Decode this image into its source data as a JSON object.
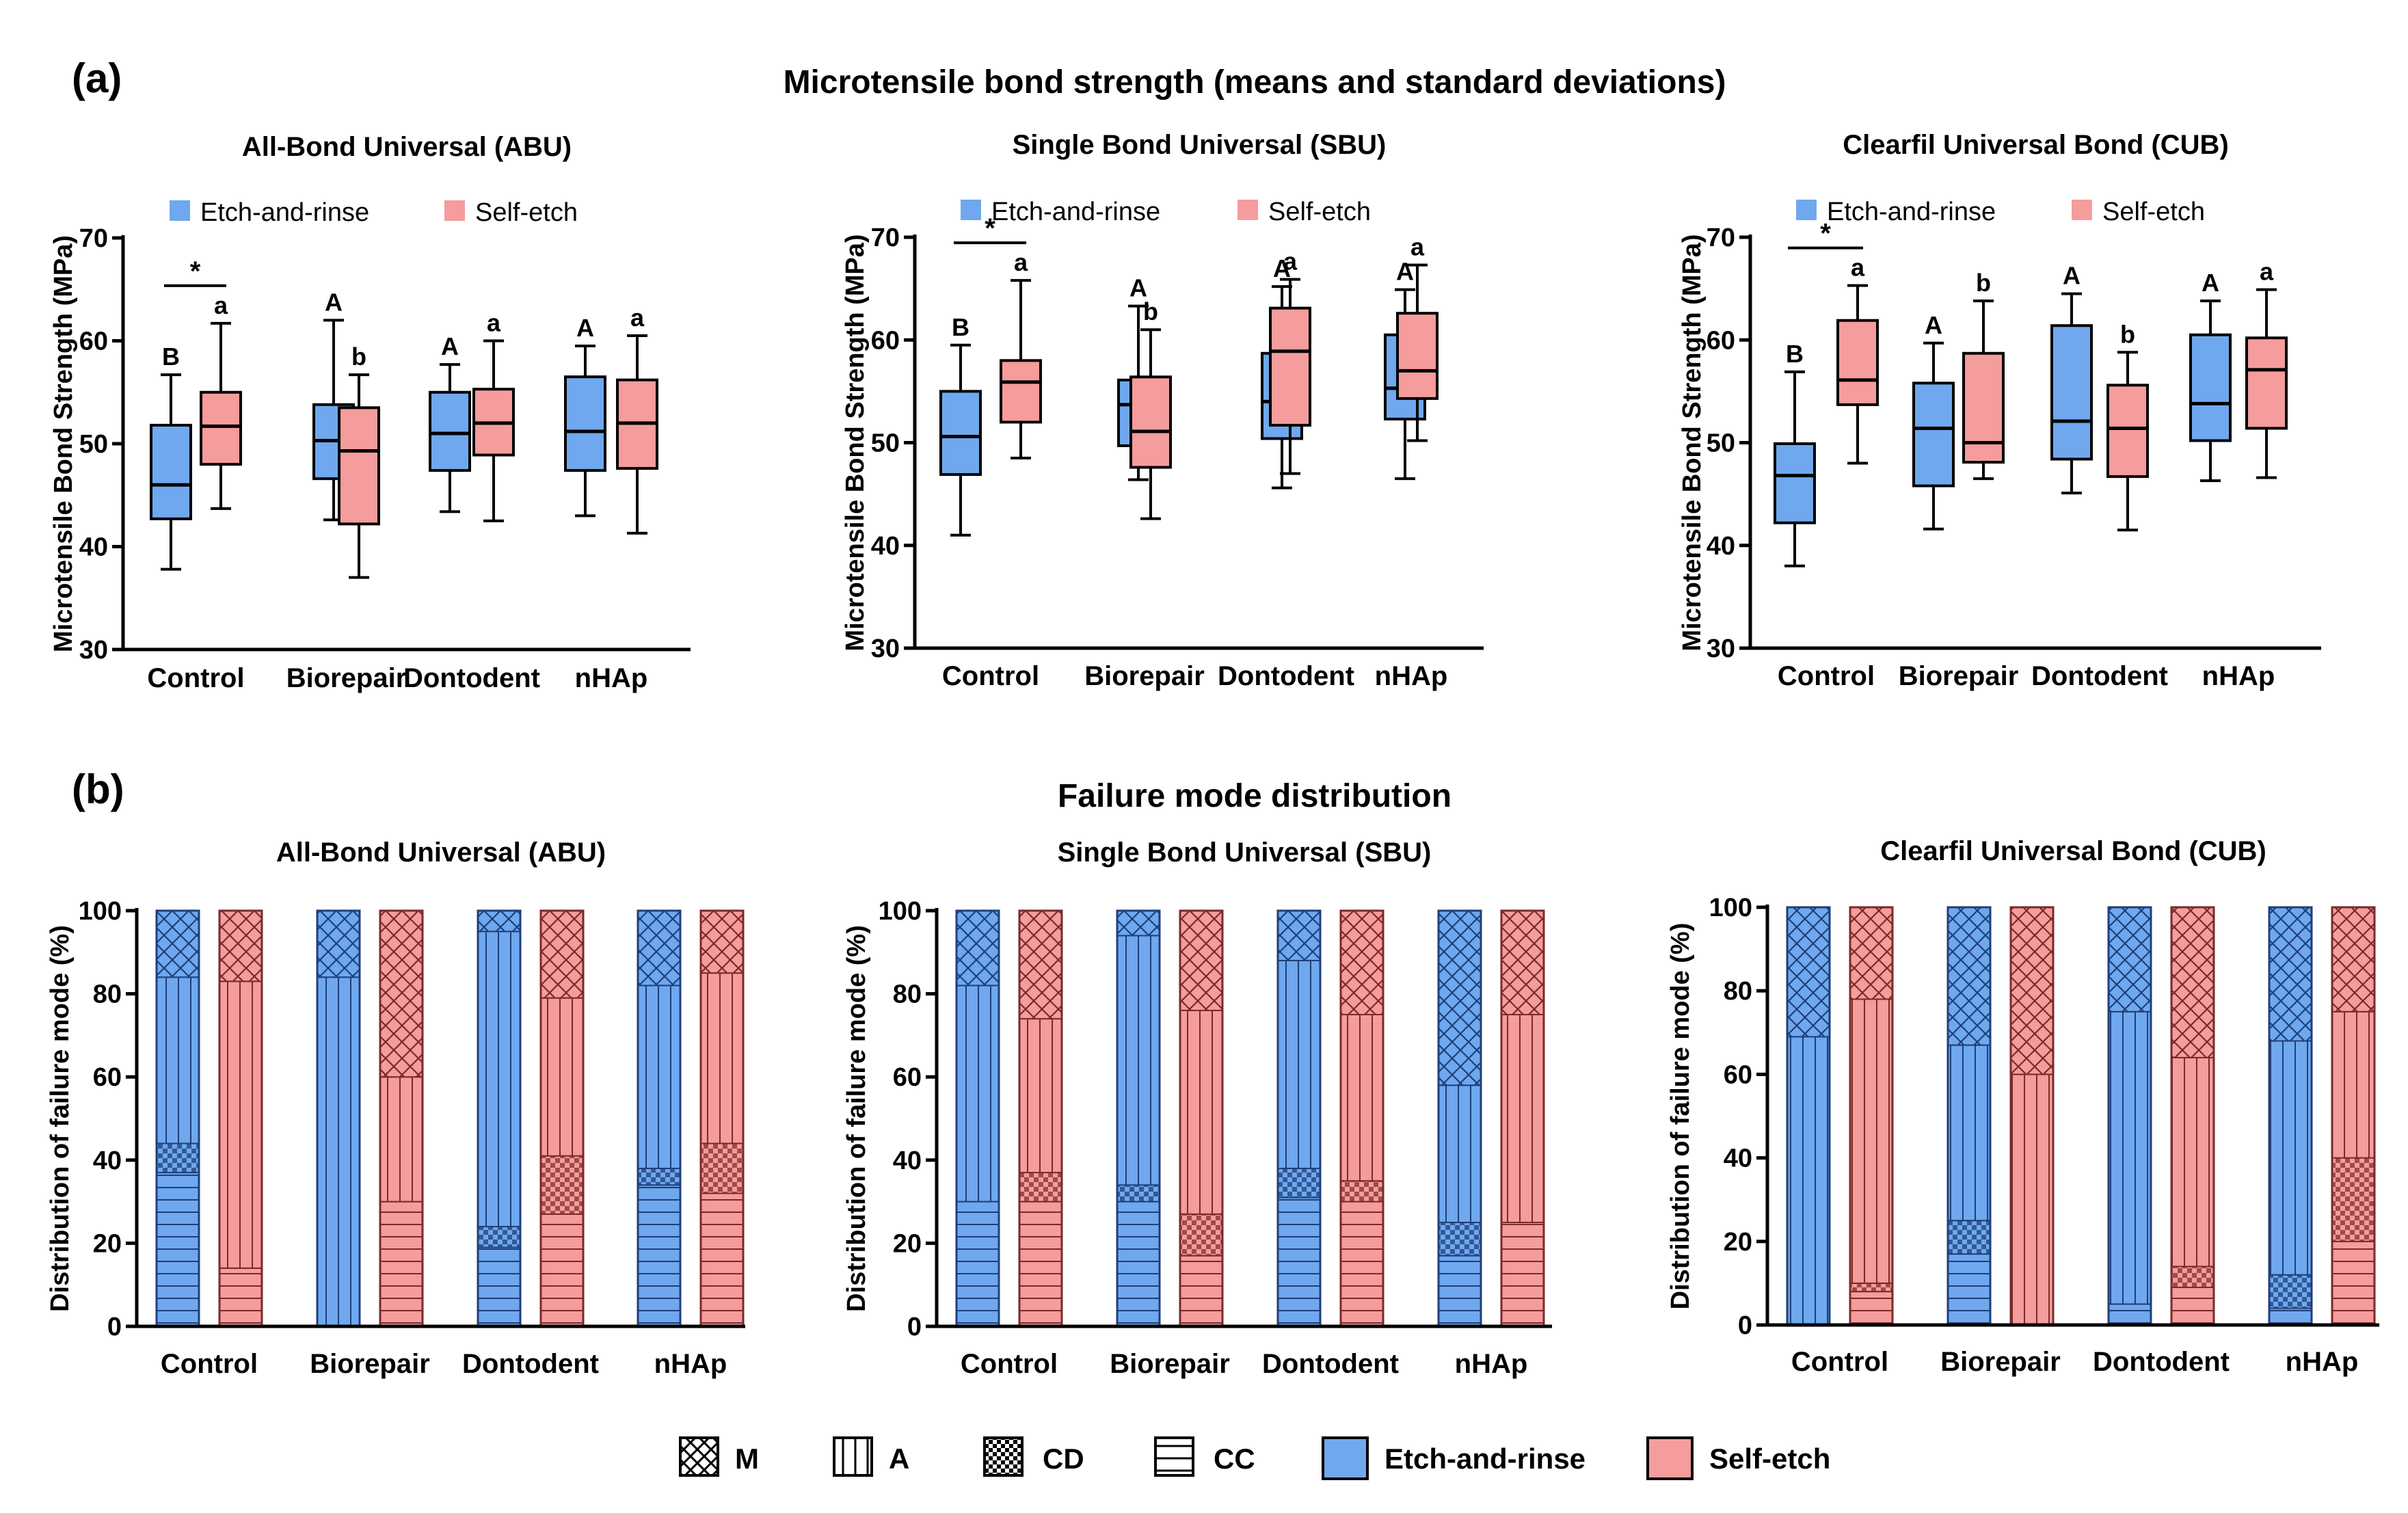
{
  "panel_labels": {
    "a": "(a)",
    "b": "(b)"
  },
  "section_titles": {
    "a": "Microtensile bond strength (means and standard deviations)",
    "b": "Failure mode distribution"
  },
  "legend_top": {
    "etch": "Etch-and-rinse",
    "self": "Self-etch"
  },
  "legend_bottom": [
    {
      "key": "M",
      "label": "M"
    },
    {
      "key": "A",
      "label": "A"
    },
    {
      "key": "CD",
      "label": "CD"
    },
    {
      "key": "CC",
      "label": "CC"
    },
    {
      "key": "ER",
      "label": "Etch-and-rinse"
    },
    {
      "key": "SE",
      "label": "Self-etch"
    }
  ],
  "colors": {
    "etch_fill": "#6fa8ee",
    "self_fill": "#f59c9c",
    "etch_line": "#1f3f78",
    "self_line": "#7a2a2a",
    "axis": "#000000"
  },
  "chart_data": [
    {
      "type": "box",
      "title": "All-Bond Universal (ABU)",
      "ylabel": "Microtensile Bond Strength (MPa)",
      "ylim": [
        30,
        70
      ],
      "yticks": [
        "30",
        "40",
        "50",
        "60",
        "70"
      ],
      "categories": [
        "Control",
        "Biorepair",
        "Dontodent",
        "nHAp"
      ],
      "series": [
        {
          "name": "Etch-and-rinse",
          "boxes": [
            {
              "min": 37.8,
              "q1": 42.7,
              "median": 46.0,
              "q3": 51.8,
              "max": 56.7,
              "letter": "B"
            },
            {
              "min": 42.6,
              "q1": 46.6,
              "median": 50.3,
              "q3": 53.8,
              "max": 62.0,
              "letter": "A"
            },
            {
              "min": 43.4,
              "q1": 47.4,
              "median": 51.0,
              "q3": 55.0,
              "max": 57.7,
              "letter": "A"
            },
            {
              "min": 43.0,
              "q1": 47.4,
              "median": 51.2,
              "q3": 56.5,
              "max": 59.5,
              "letter": "A"
            }
          ]
        },
        {
          "name": "Self-etch",
          "boxes": [
            {
              "min": 43.7,
              "q1": 48.0,
              "median": 51.7,
              "q3": 55.0,
              "max": 61.7,
              "letter": "a"
            },
            {
              "min": 37.0,
              "q1": 42.2,
              "median": 49.3,
              "q3": 53.5,
              "max": 56.7,
              "letter": "b"
            },
            {
              "min": 42.5,
              "q1": 48.9,
              "median": 52.0,
              "q3": 55.3,
              "max": 60.0,
              "letter": "a"
            },
            {
              "min": 41.3,
              "q1": 47.6,
              "median": 52.0,
              "q3": 56.2,
              "max": 60.5,
              "letter": "a"
            }
          ]
        }
      ],
      "significance": {
        "category": 0,
        "label": "*"
      }
    },
    {
      "type": "box",
      "title": "Single Bond Universal (SBU)",
      "ylabel": "Microtensile Bond Strength (MPa)",
      "ylim": [
        30,
        70
      ],
      "yticks": [
        "30",
        "40",
        "50",
        "60",
        "70"
      ],
      "categories": [
        "Control",
        "Biorepair",
        "Dontodent",
        "nHAp"
      ],
      "series": [
        {
          "name": "Etch-and-rinse",
          "boxes": [
            {
              "min": 41.0,
              "q1": 46.9,
              "median": 50.6,
              "q3": 55.0,
              "max": 59.5,
              "letter": "B"
            },
            {
              "min": 46.4,
              "q1": 49.7,
              "median": 53.7,
              "q3": 56.1,
              "max": 63.3,
              "letter": "A"
            },
            {
              "min": 45.6,
              "q1": 50.4,
              "median": 54.0,
              "q3": 58.7,
              "max": 65.2,
              "letter": "A"
            },
            {
              "min": 46.5,
              "q1": 52.3,
              "median": 55.3,
              "q3": 60.5,
              "max": 64.9,
              "letter": "A"
            }
          ]
        },
        {
          "name": "Self-etch",
          "boxes": [
            {
              "min": 48.5,
              "q1": 52.0,
              "median": 55.9,
              "q3": 58.0,
              "max": 65.8,
              "letter": "a"
            },
            {
              "min": 42.6,
              "q1": 47.6,
              "median": 51.1,
              "q3": 56.4,
              "max": 61.0,
              "letter": "b"
            },
            {
              "min": 47.0,
              "q1": 51.7,
              "median": 58.9,
              "q3": 63.1,
              "max": 65.9,
              "letter": "a"
            },
            {
              "min": 50.2,
              "q1": 54.3,
              "median": 57.0,
              "q3": 62.6,
              "max": 67.3,
              "letter": "a"
            }
          ]
        }
      ],
      "significance": {
        "category": 0,
        "label": "*"
      }
    },
    {
      "type": "box",
      "title": "Clearfil Universal Bond (CUB)",
      "ylabel": "Microtensile Bond Strength (MPa)",
      "ylim": [
        30,
        70
      ],
      "yticks": [
        "30",
        "40",
        "50",
        "60",
        "70"
      ],
      "categories": [
        "Control",
        "Biorepair",
        "Dontodent",
        "nHAp"
      ],
      "series": [
        {
          "name": "Etch-and-rinse",
          "boxes": [
            {
              "min": 38.0,
              "q1": 42.2,
              "median": 46.8,
              "q3": 49.9,
              "max": 56.9,
              "letter": "B"
            },
            {
              "min": 41.6,
              "q1": 45.8,
              "median": 51.4,
              "q3": 55.8,
              "max": 59.7,
              "letter": "A"
            },
            {
              "min": 45.1,
              "q1": 48.4,
              "median": 52.1,
              "q3": 61.4,
              "max": 64.5,
              "letter": "A"
            },
            {
              "min": 46.3,
              "q1": 50.2,
              "median": 53.8,
              "q3": 60.5,
              "max": 63.8,
              "letter": "A"
            }
          ]
        },
        {
          "name": "Self-etch",
          "boxes": [
            {
              "min": 48.0,
              "q1": 53.7,
              "median": 56.1,
              "q3": 61.9,
              "max": 65.3,
              "letter": "a"
            },
            {
              "min": 46.5,
              "q1": 48.1,
              "median": 50.0,
              "q3": 58.7,
              "max": 63.8,
              "letter": "b"
            },
            {
              "min": 41.5,
              "q1": 46.7,
              "median": 51.4,
              "q3": 55.6,
              "max": 58.8,
              "letter": "b"
            },
            {
              "min": 46.6,
              "q1": 51.4,
              "median": 57.1,
              "q3": 60.2,
              "max": 64.9,
              "letter": "a"
            }
          ]
        }
      ],
      "significance": {
        "category": 0,
        "label": "*"
      }
    },
    {
      "type": "stacked-bar",
      "title": "All-Bond Universal (ABU)",
      "ylabel": "Distribution of failure mode (%)",
      "ylim": [
        0,
        100
      ],
      "yticks": [
        "0",
        "20",
        "40",
        "60",
        "80",
        "100"
      ],
      "categories": [
        "Control",
        "Biorepair",
        "Dontodent",
        "nHAp"
      ],
      "stack_order": [
        "CC",
        "CD",
        "A",
        "M"
      ],
      "series": [
        {
          "name": "Etch-and-rinse",
          "bars": [
            {
              "CC": 37,
              "CD": 7,
              "A": 40,
              "M": 16
            },
            {
              "CC": 0,
              "CD": 0,
              "A": 84,
              "M": 16
            },
            {
              "CC": 19,
              "CD": 5,
              "A": 71,
              "M": 5
            },
            {
              "CC": 34,
              "CD": 4,
              "A": 44,
              "M": 18
            }
          ]
        },
        {
          "name": "Self-etch",
          "bars": [
            {
              "CC": 14,
              "CD": 0,
              "A": 69,
              "M": 17
            },
            {
              "CC": 30,
              "CD": 0,
              "A": 30,
              "M": 40
            },
            {
              "CC": 27,
              "CD": 14,
              "A": 38,
              "M": 21
            },
            {
              "CC": 32,
              "CD": 12,
              "A": 41,
              "M": 15
            }
          ]
        }
      ]
    },
    {
      "type": "stacked-bar",
      "title": "Single Bond Universal (SBU)",
      "ylabel": "Distribution of failure mode (%)",
      "ylim": [
        0,
        100
      ],
      "yticks": [
        "0",
        "20",
        "40",
        "60",
        "80",
        "100"
      ],
      "categories": [
        "Control",
        "Biorepair",
        "Dontodent",
        "nHAp"
      ],
      "stack_order": [
        "CC",
        "CD",
        "A",
        "M"
      ],
      "series": [
        {
          "name": "Etch-and-rinse",
          "bars": [
            {
              "CC": 30,
              "CD": 0,
              "A": 52,
              "M": 18
            },
            {
              "CC": 30,
              "CD": 4,
              "A": 60,
              "M": 6
            },
            {
              "CC": 31,
              "CD": 7,
              "A": 50,
              "M": 12
            },
            {
              "CC": 17,
              "CD": 8,
              "A": 33,
              "M": 42
            }
          ]
        },
        {
          "name": "Self-etch",
          "bars": [
            {
              "CC": 30,
              "CD": 7,
              "A": 37,
              "M": 26
            },
            {
              "CC": 17,
              "CD": 10,
              "A": 49,
              "M": 24
            },
            {
              "CC": 30,
              "CD": 5,
              "A": 40,
              "M": 25
            },
            {
              "CC": 25,
              "CD": 0,
              "A": 50,
              "M": 25
            }
          ]
        }
      ]
    },
    {
      "type": "stacked-bar",
      "title": "Clearfil Universal Bond (CUB)",
      "ylabel": "Distribution of failure mode (%)",
      "ylim": [
        0,
        100
      ],
      "yticks": [
        "0",
        "20",
        "40",
        "60",
        "80",
        "100"
      ],
      "categories": [
        "Control",
        "Biorepair",
        "Dontodent",
        "nHAp"
      ],
      "stack_order": [
        "CC",
        "CD",
        "A",
        "M"
      ],
      "series": [
        {
          "name": "Etch-and-rinse",
          "bars": [
            {
              "CC": 0,
              "CD": 0,
              "A": 69,
              "M": 31
            },
            {
              "CC": 17,
              "CD": 8,
              "A": 42,
              "M": 33
            },
            {
              "CC": 5,
              "CD": 0,
              "A": 70,
              "M": 25
            },
            {
              "CC": 4,
              "CD": 8,
              "A": 56,
              "M": 32
            }
          ]
        },
        {
          "name": "Self-etch",
          "bars": [
            {
              "CC": 8,
              "CD": 2,
              "A": 68,
              "M": 22
            },
            {
              "CC": 0,
              "CD": 0,
              "A": 60,
              "M": 40
            },
            {
              "CC": 9,
              "CD": 5,
              "A": 50,
              "M": 36
            },
            {
              "CC": 20,
              "CD": 20,
              "A": 35,
              "M": 25
            }
          ]
        }
      ]
    }
  ]
}
